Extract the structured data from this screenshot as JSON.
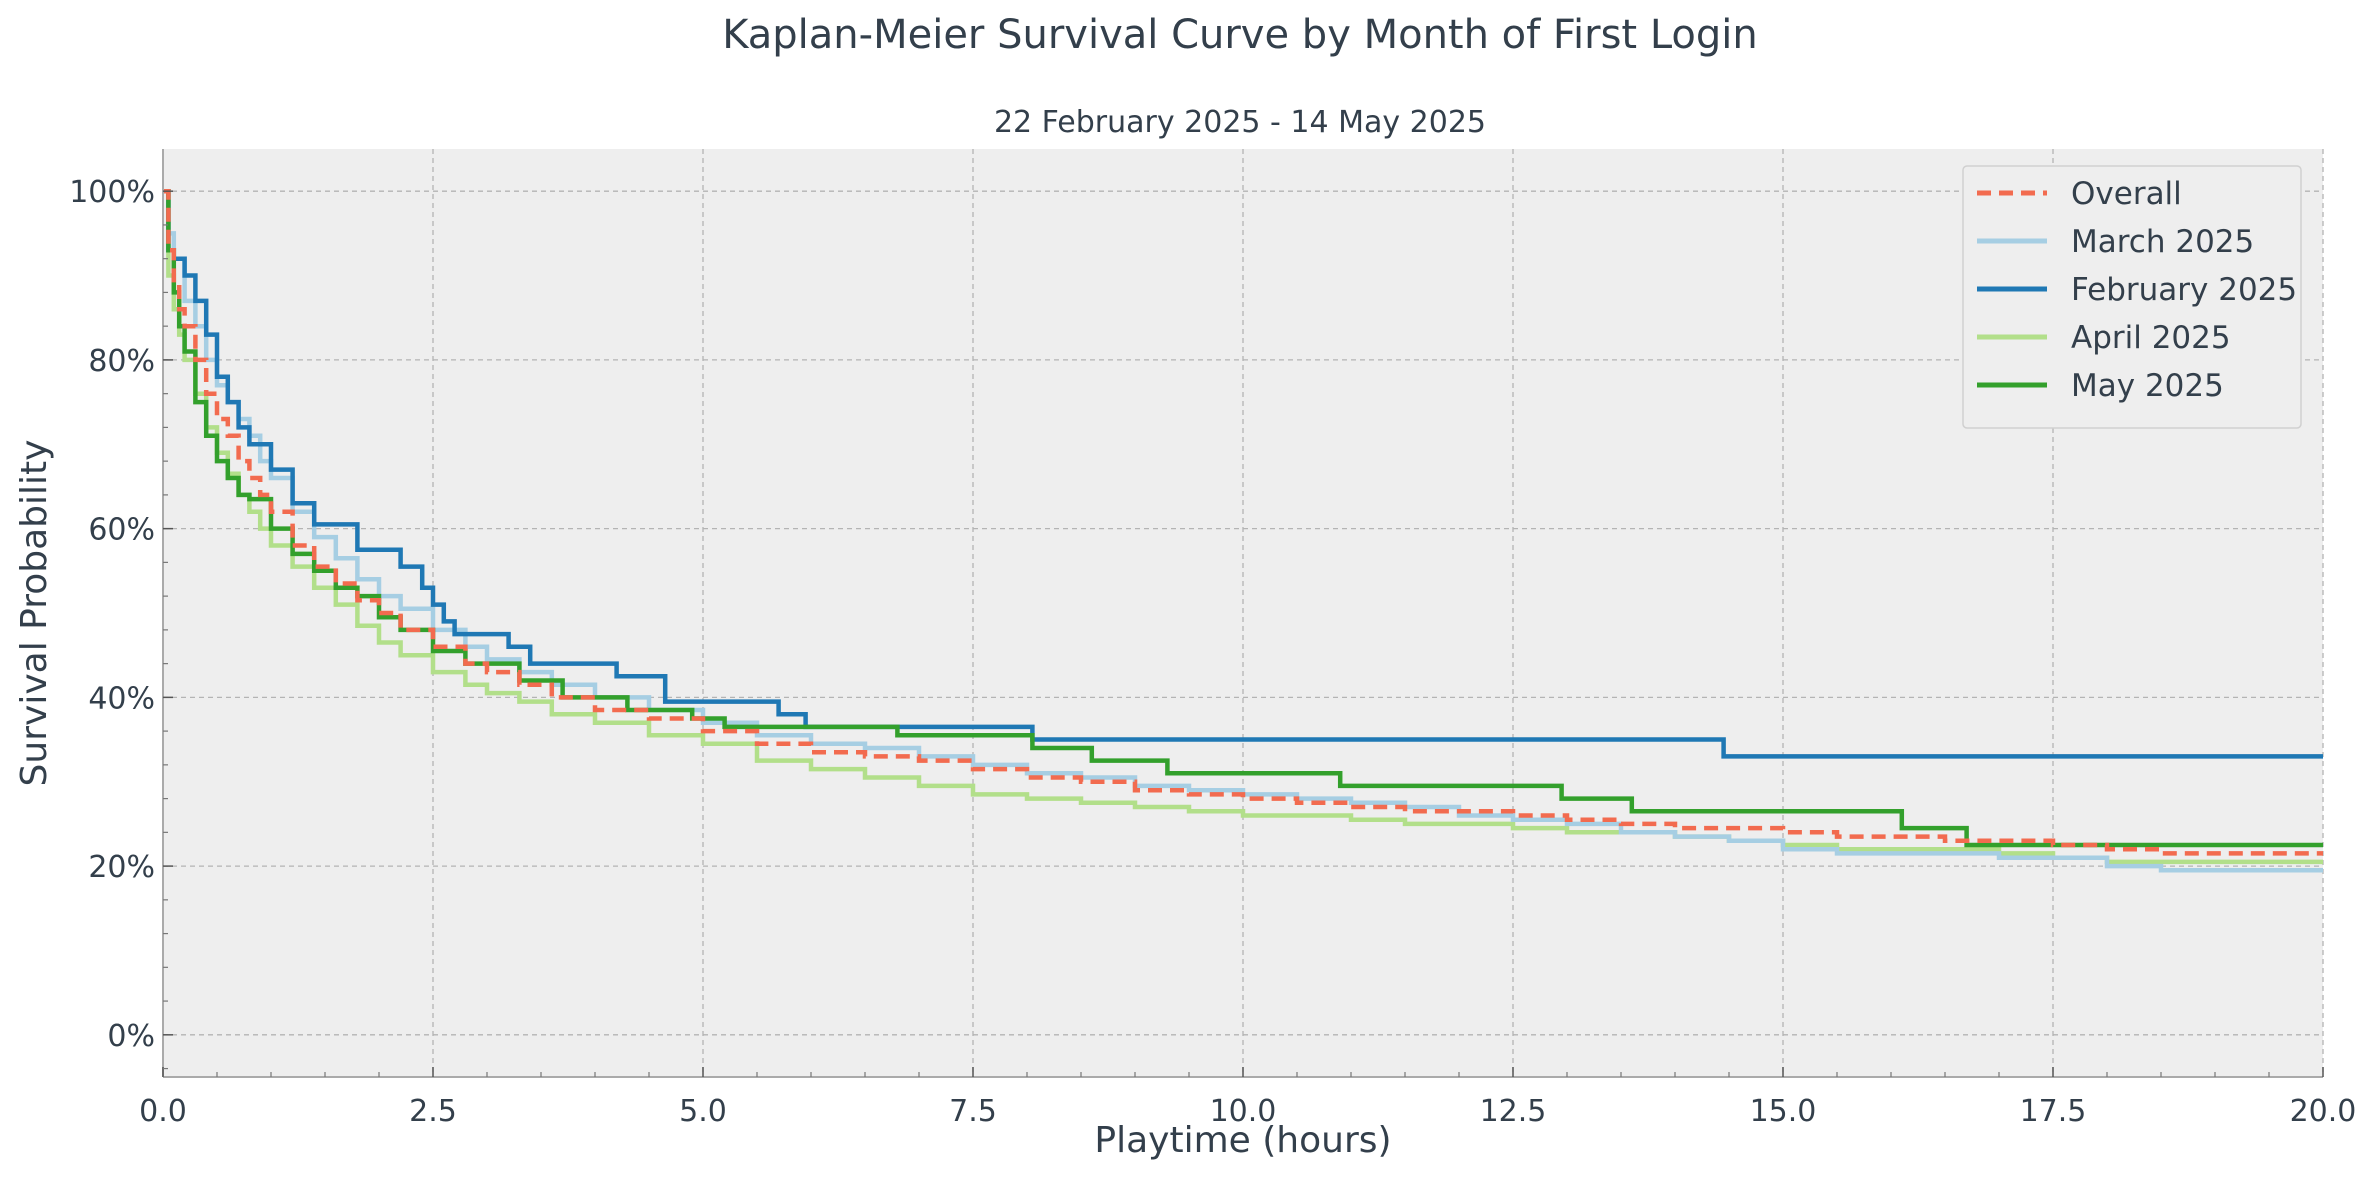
{
  "chart_data": {
    "type": "line",
    "title": "Kaplan-Meier Survival Curve by Month of First Login",
    "subtitle": "22 February 2025 - 14 May 2025",
    "xlabel": "Playtime (hours)",
    "ylabel": "Survival Probability",
    "xlim": [
      0,
      20
    ],
    "ylim": [
      -0.05,
      1.05
    ],
    "x_ticks": [
      0,
      2.5,
      5,
      7.5,
      10,
      12.5,
      15,
      17.5,
      20
    ],
    "x_tick_labels": [
      "0.0",
      "2.5",
      "5.0",
      "7.5",
      "10.0",
      "12.5",
      "15.0",
      "17.5",
      "20.0"
    ],
    "y_ticks": [
      0,
      0.2,
      0.4,
      0.6,
      0.8,
      1.0
    ],
    "y_tick_labels": [
      "0%",
      "20%",
      "40%",
      "60%",
      "80%",
      "100%"
    ],
    "grid": true,
    "legend_position": "top-right",
    "background": "#eeeeee",
    "series": [
      {
        "name": "Overall",
        "color": "#f26b4f",
        "dash": true,
        "x": [
          0,
          0.05,
          0.1,
          0.15,
          0.2,
          0.3,
          0.4,
          0.5,
          0.6,
          0.7,
          0.8,
          0.9,
          1.0,
          1.2,
          1.4,
          1.6,
          1.8,
          2.0,
          2.2,
          2.5,
          2.8,
          3.0,
          3.3,
          3.6,
          4.0,
          4.5,
          5.0,
          5.5,
          6.0,
          6.5,
          7.0,
          7.5,
          8.0,
          8.5,
          9.0,
          9.5,
          10.0,
          10.5,
          11.0,
          11.5,
          12.0,
          12.5,
          13.0,
          13.5,
          14.0,
          14.5,
          15.0,
          15.5,
          16.0,
          16.5,
          17.0,
          17.5,
          18.0,
          18.5,
          20.0
        ],
        "y": [
          1.0,
          0.93,
          0.89,
          0.86,
          0.84,
          0.8,
          0.76,
          0.73,
          0.71,
          0.68,
          0.66,
          0.64,
          0.62,
          0.58,
          0.555,
          0.535,
          0.515,
          0.5,
          0.48,
          0.46,
          0.44,
          0.43,
          0.415,
          0.4,
          0.385,
          0.375,
          0.36,
          0.345,
          0.335,
          0.33,
          0.325,
          0.315,
          0.305,
          0.3,
          0.29,
          0.285,
          0.28,
          0.275,
          0.27,
          0.265,
          0.265,
          0.26,
          0.255,
          0.25,
          0.245,
          0.245,
          0.24,
          0.235,
          0.235,
          0.23,
          0.23,
          0.225,
          0.22,
          0.215,
          0.215
        ]
      },
      {
        "name": "March 2025",
        "color": "#a6cee3",
        "dash": false,
        "x": [
          0,
          0.05,
          0.1,
          0.2,
          0.3,
          0.4,
          0.5,
          0.6,
          0.7,
          0.8,
          0.9,
          1.0,
          1.2,
          1.4,
          1.6,
          1.8,
          2.0,
          2.2,
          2.5,
          2.8,
          3.0,
          3.3,
          3.6,
          4.0,
          4.5,
          5.0,
          5.5,
          6.0,
          6.5,
          7.0,
          7.5,
          8.0,
          8.5,
          9.0,
          9.5,
          10.0,
          10.5,
          11.0,
          11.5,
          12.0,
          12.5,
          13.0,
          13.5,
          14.0,
          14.5,
          15.0,
          15.5,
          16.0,
          16.5,
          17.0,
          17.5,
          18.0,
          18.5,
          20.0
        ],
        "y": [
          1.0,
          0.95,
          0.92,
          0.87,
          0.84,
          0.8,
          0.77,
          0.75,
          0.73,
          0.71,
          0.68,
          0.66,
          0.62,
          0.59,
          0.565,
          0.54,
          0.52,
          0.505,
          0.48,
          0.46,
          0.445,
          0.43,
          0.415,
          0.4,
          0.385,
          0.37,
          0.355,
          0.345,
          0.34,
          0.33,
          0.32,
          0.31,
          0.305,
          0.295,
          0.29,
          0.285,
          0.28,
          0.275,
          0.27,
          0.26,
          0.255,
          0.25,
          0.24,
          0.235,
          0.23,
          0.22,
          0.215,
          0.215,
          0.215,
          0.21,
          0.21,
          0.2,
          0.195,
          0.195
        ]
      },
      {
        "name": "February 2025",
        "color": "#1f78b4",
        "dash": false,
        "x": [
          0,
          0.05,
          0.1,
          0.2,
          0.3,
          0.4,
          0.5,
          0.6,
          0.7,
          0.8,
          1.0,
          1.2,
          1.4,
          1.8,
          2.2,
          2.4,
          2.5,
          2.6,
          2.7,
          3.2,
          3.4,
          4.2,
          4.65,
          5.7,
          5.95,
          6.8,
          8.05,
          14.45,
          20.0
        ],
        "y": [
          1.0,
          0.93,
          0.92,
          0.9,
          0.87,
          0.83,
          0.78,
          0.75,
          0.72,
          0.7,
          0.67,
          0.63,
          0.605,
          0.575,
          0.555,
          0.53,
          0.51,
          0.49,
          0.475,
          0.46,
          0.44,
          0.425,
          0.395,
          0.38,
          0.365,
          0.365,
          0.35,
          0.33,
          0.33
        ]
      },
      {
        "name": "April 2025",
        "color": "#b2df8a",
        "dash": false,
        "x": [
          0,
          0.05,
          0.1,
          0.15,
          0.2,
          0.3,
          0.4,
          0.5,
          0.6,
          0.7,
          0.8,
          0.9,
          1.0,
          1.2,
          1.4,
          1.6,
          1.8,
          2.0,
          2.2,
          2.5,
          2.8,
          3.0,
          3.3,
          3.6,
          4.0,
          4.5,
          5.0,
          5.5,
          6.0,
          6.5,
          7.0,
          7.5,
          8.0,
          8.5,
          9.0,
          9.5,
          10.0,
          10.5,
          11.0,
          11.5,
          12.0,
          12.5,
          13.0,
          13.5,
          14.0,
          14.5,
          15.0,
          15.5,
          16.0,
          16.5,
          17.0,
          17.5,
          18.0,
          20.0
        ],
        "y": [
          1.0,
          0.9,
          0.86,
          0.83,
          0.8,
          0.76,
          0.72,
          0.69,
          0.665,
          0.64,
          0.62,
          0.6,
          0.58,
          0.555,
          0.53,
          0.51,
          0.485,
          0.465,
          0.45,
          0.43,
          0.415,
          0.405,
          0.395,
          0.38,
          0.37,
          0.355,
          0.345,
          0.325,
          0.315,
          0.305,
          0.295,
          0.285,
          0.28,
          0.275,
          0.27,
          0.265,
          0.26,
          0.26,
          0.255,
          0.25,
          0.25,
          0.245,
          0.24,
          0.24,
          0.235,
          0.23,
          0.225,
          0.22,
          0.22,
          0.22,
          0.215,
          0.21,
          0.205,
          0.205
        ]
      },
      {
        "name": "May 2025",
        "color": "#33a02c",
        "dash": false,
        "x": [
          0,
          0.05,
          0.1,
          0.15,
          0.2,
          0.3,
          0.4,
          0.5,
          0.6,
          0.7,
          0.8,
          1.0,
          1.2,
          1.4,
          1.6,
          1.8,
          2.0,
          2.2,
          2.5,
          2.8,
          3.3,
          3.7,
          4.3,
          4.9,
          5.2,
          6.8,
          8.05,
          8.6,
          9.3,
          10.9,
          12.95,
          13.6,
          16.1,
          16.7,
          17.5,
          18.0,
          20.0
        ],
        "y": [
          1.0,
          0.93,
          0.88,
          0.84,
          0.81,
          0.75,
          0.71,
          0.68,
          0.66,
          0.64,
          0.635,
          0.6,
          0.57,
          0.55,
          0.53,
          0.52,
          0.495,
          0.48,
          0.455,
          0.44,
          0.42,
          0.4,
          0.385,
          0.375,
          0.365,
          0.355,
          0.34,
          0.325,
          0.31,
          0.295,
          0.28,
          0.265,
          0.245,
          0.225,
          0.225,
          0.225,
          0.225
        ]
      }
    ]
  }
}
